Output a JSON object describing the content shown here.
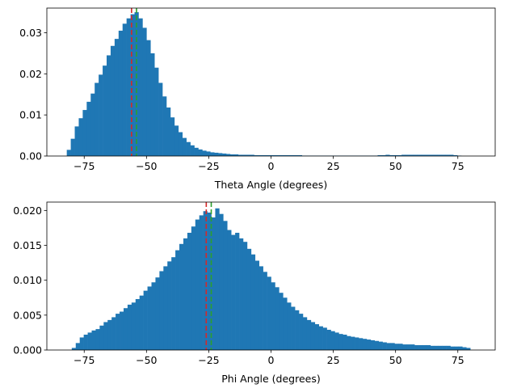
{
  "chart_data": [
    {
      "type": "bar",
      "xlabel": "Theta Angle (degrees)",
      "ylabel": "",
      "xlim": [
        -90,
        90
      ],
      "ylim": [
        0,
        0.036
      ],
      "xticks": [
        -75,
        -50,
        -25,
        0,
        25,
        50,
        75
      ],
      "yticks": [
        0.0,
        0.01,
        0.02,
        0.03
      ],
      "ytick_labels": [
        "0.00",
        "0.01",
        "0.02",
        "0.03"
      ],
      "xtick_labels": [
        "−75",
        "−50",
        "−25",
        "0",
        "25",
        "50",
        "75"
      ],
      "bin_start": -82,
      "bin_width": 1.6,
      "values": [
        0.0015,
        0.0042,
        0.0072,
        0.0092,
        0.0112,
        0.0132,
        0.0152,
        0.0178,
        0.0198,
        0.022,
        0.0245,
        0.0268,
        0.0285,
        0.0305,
        0.0322,
        0.0335,
        0.0345,
        0.035,
        0.0335,
        0.0312,
        0.0282,
        0.025,
        0.0215,
        0.0178,
        0.0145,
        0.0118,
        0.0094,
        0.0074,
        0.0058,
        0.0044,
        0.0034,
        0.0026,
        0.002,
        0.0016,
        0.0013,
        0.0011,
        0.0009,
        0.0008,
        0.0007,
        0.0006,
        0.0005,
        0.0004,
        0.0004,
        0.0003,
        0.0003,
        0.0003,
        0.0003,
        0.0002,
        0.0002,
        0.0002,
        0.0002,
        0.0002,
        0.0002,
        0.0002,
        0.0002,
        0.0002,
        0.0002,
        0.0002,
        0.0002,
        0.0001,
        0.0001,
        0.0001,
        0.0001,
        0.0001,
        0.0001,
        0.0001,
        0.0001,
        0.0001,
        0.0001,
        0.0001,
        0.0001,
        0.0001,
        0.0001,
        0.0001,
        0.0001,
        0.0001,
        0.0001,
        0.0001,
        0.0002,
        0.0002,
        0.0003,
        0.0002,
        0.0002,
        0.0002,
        0.0003,
        0.0003,
        0.0003,
        0.0003,
        0.0003,
        0.0003,
        0.0003,
        0.0003,
        0.0003,
        0.0003,
        0.0003,
        0.0003,
        0.0003,
        0.0002,
        0.0001
      ],
      "bar_color": "#1f77b4",
      "vlines": [
        {
          "x": -56,
          "color": "#d62728",
          "style": "dashed"
        },
        {
          "x": -54,
          "color": "#2ca02c",
          "style": "dashed"
        }
      ],
      "grid": false
    },
    {
      "type": "bar",
      "xlabel": "Phi Angle (degrees)",
      "ylabel": "",
      "xlim": [
        -90,
        90
      ],
      "ylim": [
        0,
        0.0212
      ],
      "xticks": [
        -75,
        -50,
        -25,
        0,
        25,
        50,
        75
      ],
      "yticks": [
        0.0,
        0.005,
        0.01,
        0.015,
        0.02
      ],
      "ytick_labels": [
        "0.000",
        "0.005",
        "0.010",
        "0.015",
        "0.020"
      ],
      "xtick_labels": [
        "−75",
        "−50",
        "−25",
        "0",
        "25",
        "50",
        "75"
      ],
      "bin_start": -80,
      "bin_width": 1.6,
      "values": [
        0.0003,
        0.001,
        0.0018,
        0.0022,
        0.0025,
        0.0028,
        0.003,
        0.0035,
        0.004,
        0.0043,
        0.0047,
        0.0052,
        0.0055,
        0.006,
        0.0065,
        0.0068,
        0.0073,
        0.0078,
        0.0085,
        0.0091,
        0.0097,
        0.0104,
        0.0113,
        0.012,
        0.0127,
        0.0133,
        0.0143,
        0.0152,
        0.016,
        0.0168,
        0.0177,
        0.0187,
        0.0193,
        0.0199,
        0.0197,
        0.019,
        0.0203,
        0.0195,
        0.0185,
        0.0172,
        0.0165,
        0.0168,
        0.016,
        0.0155,
        0.0145,
        0.0137,
        0.0128,
        0.012,
        0.0112,
        0.0105,
        0.0097,
        0.009,
        0.0082,
        0.0075,
        0.0068,
        0.0062,
        0.0057,
        0.0052,
        0.0047,
        0.0043,
        0.004,
        0.0037,
        0.0034,
        0.0032,
        0.0029,
        0.0027,
        0.0025,
        0.0023,
        0.0022,
        0.002,
        0.0019,
        0.0018,
        0.0017,
        0.0016,
        0.0015,
        0.0014,
        0.0013,
        0.0012,
        0.0011,
        0.001,
        0.001,
        0.0009,
        0.0009,
        0.0008,
        0.0008,
        0.0008,
        0.0007,
        0.0007,
        0.0007,
        0.0007,
        0.0006,
        0.0006,
        0.0006,
        0.0006,
        0.0006,
        0.0005,
        0.0005,
        0.0005,
        0.0004,
        0.0003
      ],
      "bar_color": "#1f77b4",
      "vlines": [
        {
          "x": -26,
          "color": "#d62728",
          "style": "dashed"
        },
        {
          "x": -24,
          "color": "#2ca02c",
          "style": "dashed"
        }
      ],
      "grid": false
    }
  ]
}
